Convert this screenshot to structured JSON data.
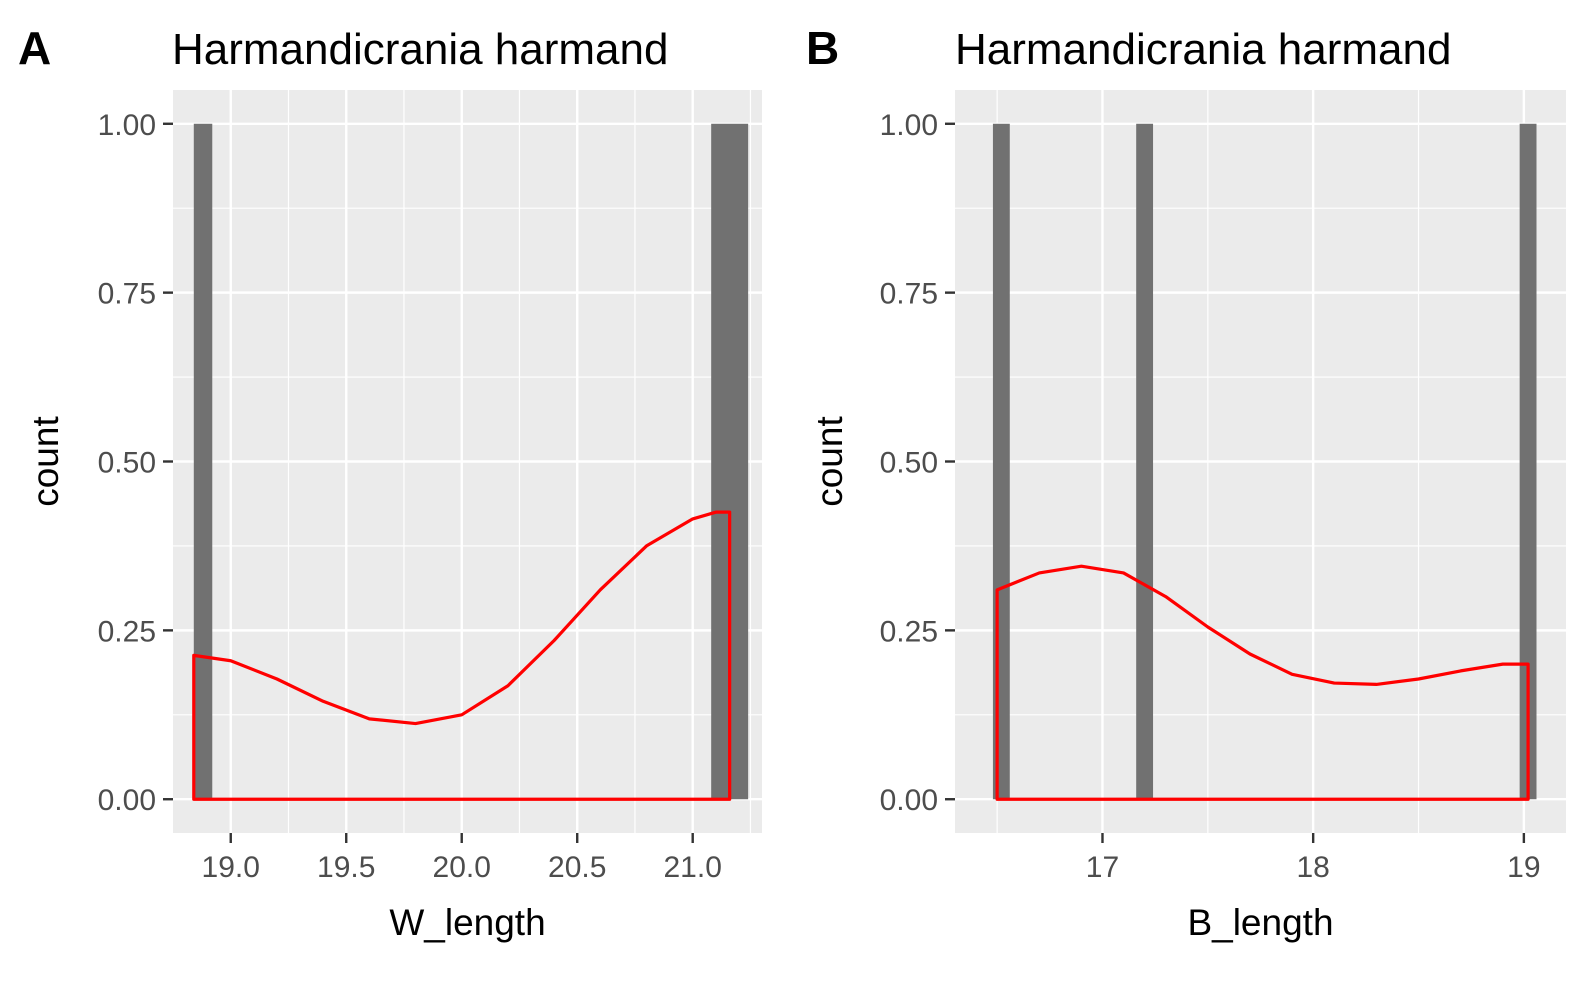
{
  "chart_data": [
    {
      "type": "bar",
      "tag": "A",
      "title": "Harmandicrania harmand",
      "xlabel": "W_length",
      "ylabel": "count",
      "xlim": [
        18.75,
        21.3
      ],
      "ylim": [
        -0.05,
        1.05
      ],
      "x_ticks": [
        "19.0",
        "19.5",
        "20.0",
        "20.5",
        "21.0"
      ],
      "x_tick_values": [
        19.0,
        19.5,
        20.0,
        20.5,
        21.0
      ],
      "y_ticks": [
        "0.00",
        "0.25",
        "0.50",
        "0.75",
        "1.00"
      ],
      "y_tick_values": [
        0,
        0.25,
        0.5,
        0.75,
        1.0
      ],
      "grid": true,
      "bars": [
        {
          "x_start": 18.84,
          "x_end": 18.92,
          "count": 1
        },
        {
          "x_start": 21.08,
          "x_end": 21.24,
          "count": 1
        }
      ],
      "density": {
        "x": [
          18.84,
          19.0,
          19.2,
          19.4,
          19.6,
          19.8,
          20.0,
          20.2,
          20.4,
          20.6,
          20.8,
          21.0,
          21.1,
          21.16
        ],
        "y": [
          0.213,
          0.205,
          0.178,
          0.145,
          0.119,
          0.112,
          0.125,
          0.168,
          0.235,
          0.31,
          0.375,
          0.415,
          0.425,
          0.425
        ]
      },
      "colors": {
        "bar": "#717171",
        "density": "#ff0000",
        "panel": "#ebebeb",
        "grid": "#ffffff"
      }
    },
    {
      "type": "bar",
      "tag": "B",
      "title": "Harmandicrania harmand",
      "xlabel": "B_length",
      "ylabel": "count",
      "xlim": [
        16.3,
        19.2
      ],
      "ylim": [
        -0.05,
        1.05
      ],
      "x_ticks": [
        "17",
        "18",
        "19"
      ],
      "x_tick_values": [
        17,
        18,
        19
      ],
      "y_ticks": [
        "0.00",
        "0.25",
        "0.50",
        "0.75",
        "1.00"
      ],
      "y_tick_values": [
        0,
        0.25,
        0.5,
        0.75,
        1.0
      ],
      "grid": true,
      "bars": [
        {
          "x_start": 16.48,
          "x_end": 16.56,
          "count": 1
        },
        {
          "x_start": 17.16,
          "x_end": 17.24,
          "count": 1
        },
        {
          "x_start": 18.98,
          "x_end": 19.06,
          "count": 1
        }
      ],
      "density": {
        "x": [
          16.5,
          16.7,
          16.9,
          17.1,
          17.3,
          17.5,
          17.7,
          17.9,
          18.1,
          18.3,
          18.5,
          18.7,
          18.9,
          19.02
        ],
        "y": [
          0.31,
          0.335,
          0.345,
          0.335,
          0.3,
          0.255,
          0.215,
          0.185,
          0.172,
          0.17,
          0.178,
          0.19,
          0.2,
          0.2
        ]
      },
      "colors": {
        "bar": "#717171",
        "density": "#ff0000",
        "panel": "#ebebeb",
        "grid": "#ffffff"
      }
    }
  ]
}
